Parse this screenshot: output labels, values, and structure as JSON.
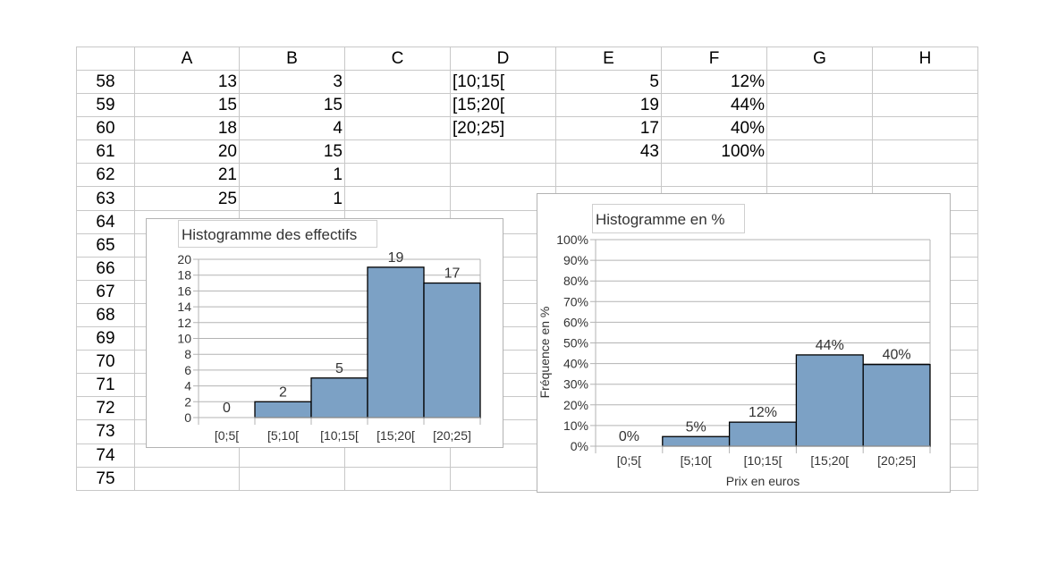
{
  "sheet": {
    "columns": [
      "A",
      "B",
      "C",
      "D",
      "E",
      "F",
      "G",
      "H"
    ],
    "rows": [
      {
        "n": "58",
        "cells": [
          "13",
          "3",
          "",
          "[10;15[",
          "5",
          "12%",
          "",
          ""
        ]
      },
      {
        "n": "59",
        "cells": [
          "15",
          "15",
          "",
          "[15;20[",
          "19",
          "44%",
          "",
          ""
        ]
      },
      {
        "n": "60",
        "cells": [
          "18",
          "4",
          "",
          "[20;25]",
          "17",
          "40%",
          "",
          ""
        ]
      },
      {
        "n": "61",
        "cells": [
          "20",
          "15",
          "",
          "",
          "43",
          "100%",
          "",
          ""
        ]
      },
      {
        "n": "62",
        "cells": [
          "21",
          "1",
          "",
          "",
          "",
          "",
          "",
          ""
        ]
      },
      {
        "n": "63",
        "cells": [
          "25",
          "1",
          "",
          "",
          "",
          "",
          "",
          ""
        ]
      },
      {
        "n": "64",
        "cells": [
          "",
          "",
          "",
          "",
          "",
          "",
          "",
          ""
        ]
      },
      {
        "n": "65",
        "cells": [
          "",
          "",
          "",
          "",
          "",
          "",
          "",
          ""
        ]
      },
      {
        "n": "66",
        "cells": [
          "",
          "",
          "",
          "",
          "",
          "",
          "",
          ""
        ]
      },
      {
        "n": "67",
        "cells": [
          "",
          "",
          "",
          "",
          "",
          "",
          "",
          ""
        ]
      },
      {
        "n": "68",
        "cells": [
          "",
          "",
          "",
          "",
          "",
          "",
          "",
          ""
        ]
      },
      {
        "n": "69",
        "cells": [
          "",
          "",
          "",
          "",
          "",
          "",
          "",
          ""
        ]
      },
      {
        "n": "70",
        "cells": [
          "",
          "",
          "",
          "",
          "",
          "",
          "",
          ""
        ]
      },
      {
        "n": "71",
        "cells": [
          "",
          "",
          "",
          "",
          "",
          "",
          "",
          ""
        ]
      },
      {
        "n": "72",
        "cells": [
          "",
          "",
          "",
          "",
          "",
          "",
          "",
          ""
        ]
      },
      {
        "n": "73",
        "cells": [
          "",
          "",
          "",
          "",
          "",
          "",
          "",
          ""
        ]
      },
      {
        "n": "74",
        "cells": [
          "",
          "",
          "",
          "",
          "",
          "",
          "",
          ""
        ]
      },
      {
        "n": "75",
        "cells": [
          "",
          "",
          "",
          "",
          "",
          "",
          "",
          ""
        ]
      }
    ]
  },
  "chart_data": [
    {
      "type": "bar",
      "title": "Histogramme des effectifs",
      "categories": [
        "[0;5[",
        "[5;10[",
        "[10;15[",
        "[15;20[",
        "[20;25]"
      ],
      "values": [
        0,
        2,
        5,
        19,
        17
      ],
      "data_labels": [
        "0",
        "2",
        "5",
        "19",
        "17"
      ],
      "ylim": [
        0,
        20
      ],
      "yticks": [
        "0",
        "2",
        "4",
        "6",
        "8",
        "10",
        "12",
        "14",
        "16",
        "18",
        "20"
      ],
      "xlabel": "",
      "ylabel": "",
      "grid": true,
      "bar_color": "#7ca1c5"
    },
    {
      "type": "bar",
      "title": "Histogramme en %",
      "categories": [
        "[0;5[",
        "[5;10[",
        "[10;15[",
        "[15;20[",
        "[20;25]"
      ],
      "values": [
        0,
        4.65,
        11.63,
        44.19,
        39.53
      ],
      "data_labels": [
        "0%",
        "5%",
        "12%",
        "44%",
        "40%"
      ],
      "ylim": [
        0,
        100
      ],
      "yticks": [
        "0%",
        "10%",
        "20%",
        "30%",
        "40%",
        "50%",
        "60%",
        "70%",
        "80%",
        "90%",
        "100%"
      ],
      "xlabel": "Prix en euros",
      "ylabel": "Fréquence en %",
      "grid": true,
      "bar_color": "#7ca1c5"
    }
  ]
}
